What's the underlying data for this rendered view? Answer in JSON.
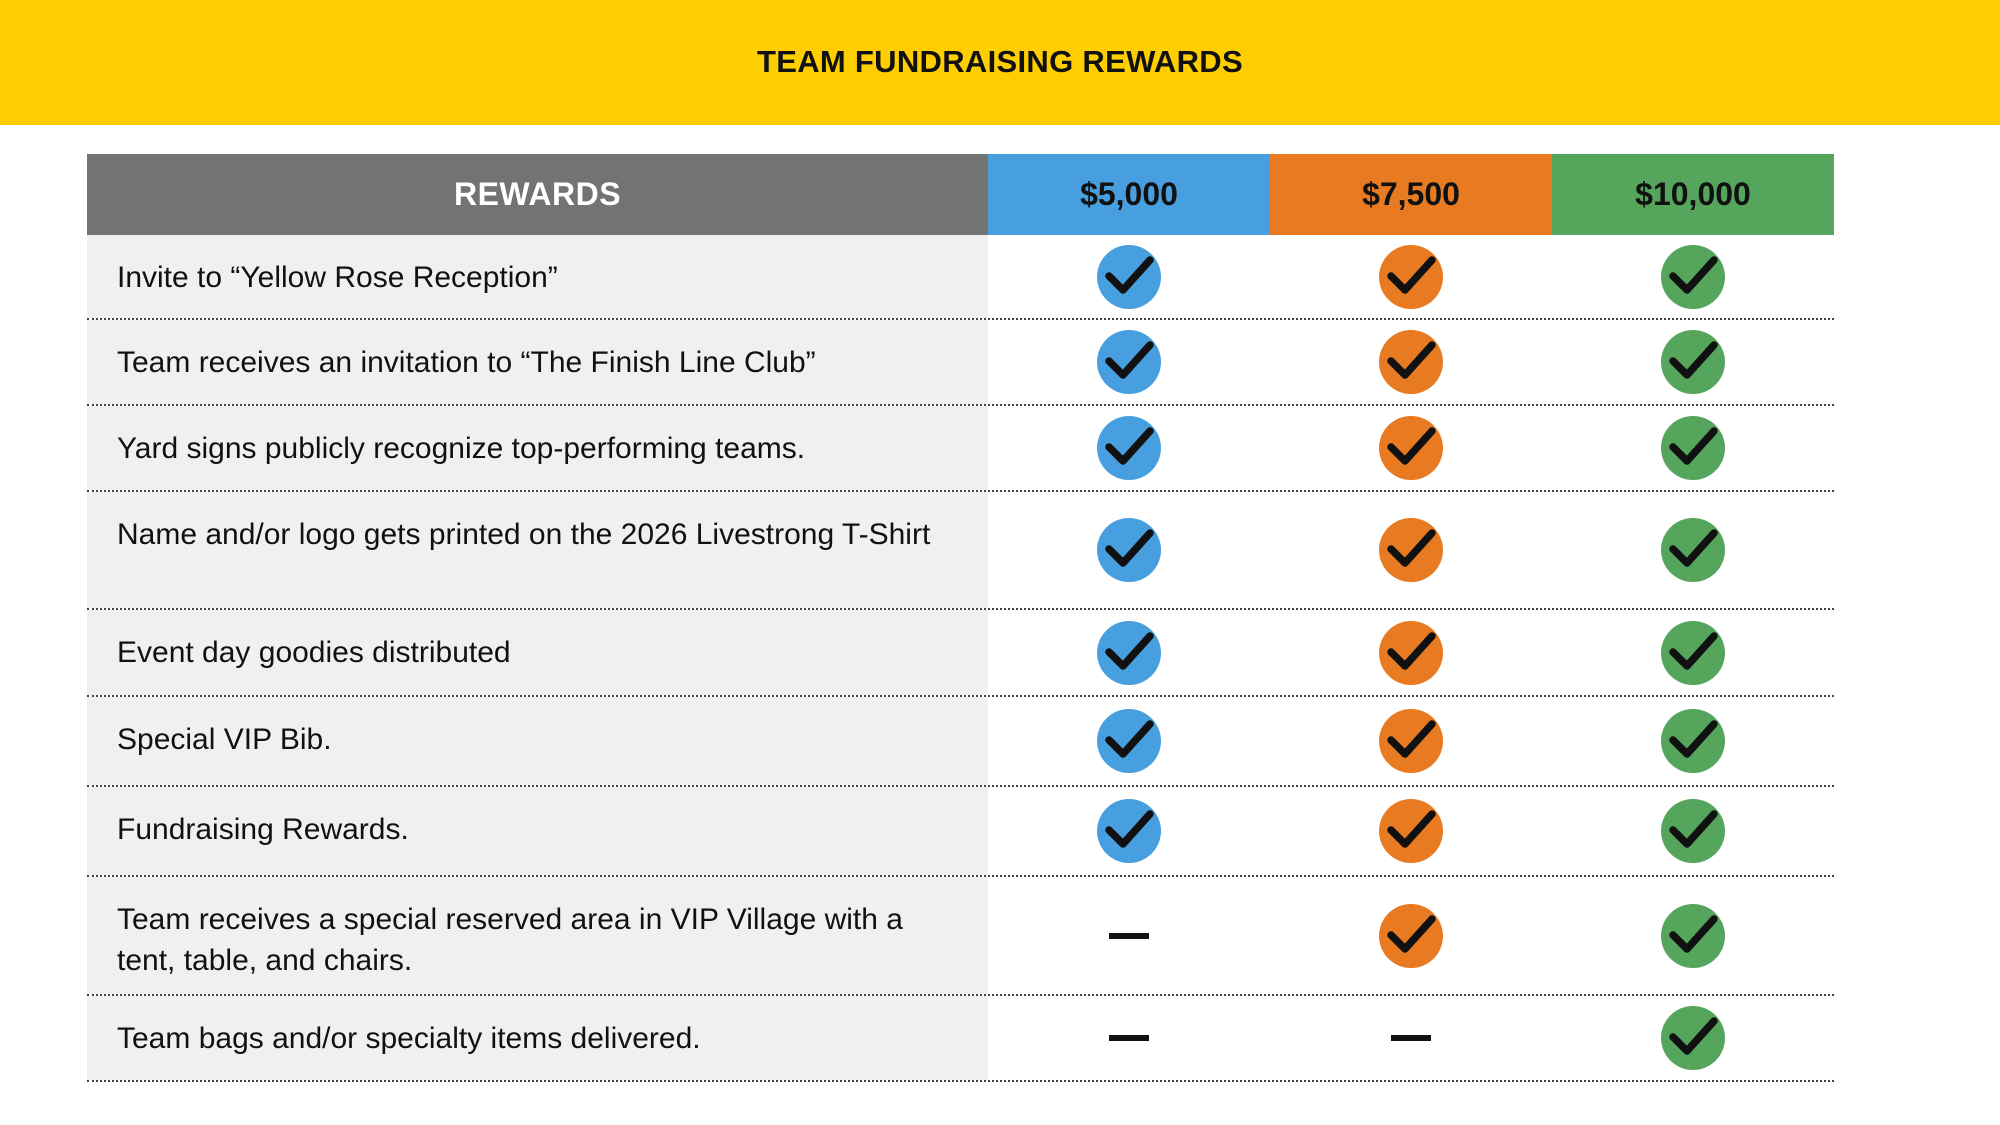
{
  "header": {
    "title": "TEAM FUNDRAISING REWARDS"
  },
  "table": {
    "columns": [
      {
        "label": "REWARDS",
        "color": "#737373"
      },
      {
        "label": "$5,000",
        "color": "#479FE0"
      },
      {
        "label": "$7,500",
        "color": "#E87B22"
      },
      {
        "label": "$10,000",
        "color": "#55A55D"
      }
    ],
    "rows": [
      {
        "label": "Invite to “Yellow Rose Reception”",
        "included": [
          true,
          true,
          true
        ]
      },
      {
        "label": "Team receives an invitation to “The Finish Line Club”",
        "included": [
          true,
          true,
          true
        ]
      },
      {
        "label": "Yard signs publicly recognize top-performing teams.",
        "included": [
          true,
          true,
          true
        ]
      },
      {
        "label": "Name and/or logo gets printed on the 2026 Livestrong T-Shirt",
        "included": [
          true,
          true,
          true
        ]
      },
      {
        "label": "Event day goodies distributed",
        "included": [
          true,
          true,
          true
        ]
      },
      {
        "label": "Special VIP Bib.",
        "included": [
          true,
          true,
          true
        ]
      },
      {
        "label": "Fundraising Rewards.",
        "included": [
          true,
          true,
          true
        ]
      },
      {
        "label": "Team receives a special reserved area in VIP Village with a tent, table, and chairs.",
        "included": [
          false,
          true,
          true
        ]
      },
      {
        "label": "Team bags and/or specialty items delivered.",
        "included": [
          false,
          false,
          true
        ]
      }
    ]
  },
  "icons": {
    "included": "check-circle-icon",
    "not_included": "dash-icon"
  }
}
